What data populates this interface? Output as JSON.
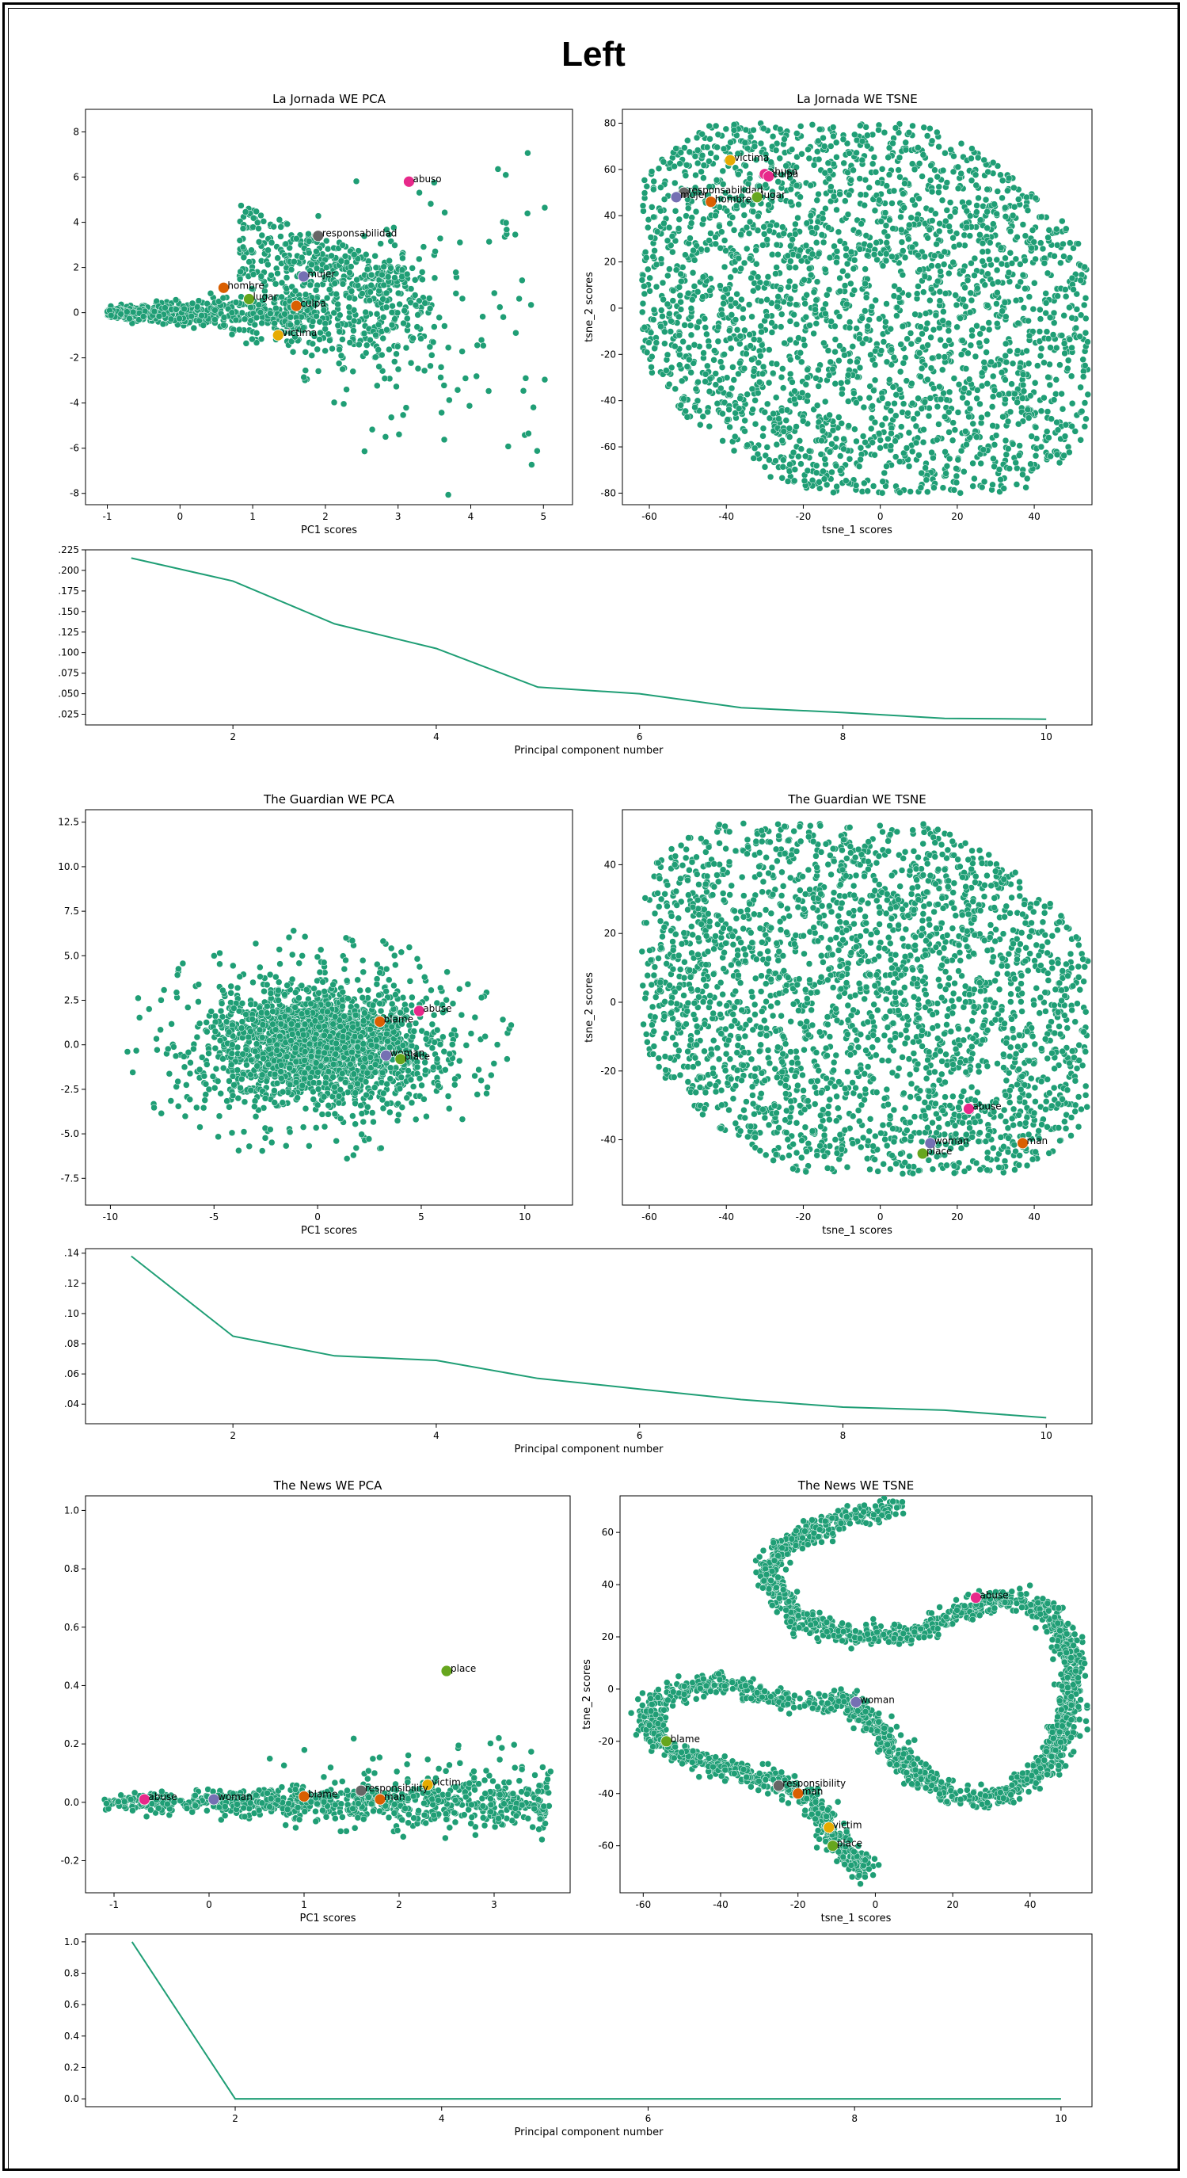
{
  "page_title": "Left",
  "colors": {
    "point": "#1f9e75",
    "point_edge": "#ffffff",
    "line": "#1f9e75",
    "highlight": [
      "#e7298a",
      "#666666",
      "#7570b3",
      "#d95f02",
      "#66a61e",
      "#e6ab02",
      "#1b9e77"
    ]
  },
  "chart_data": [
    {
      "id": "lj-pca",
      "type": "scatter",
      "title": "La Jornada WE PCA",
      "xlabel": "PC1 scores",
      "ylabel": "",
      "xlim": [
        -1.3,
        5.4
      ],
      "ylim": [
        -8.5,
        9.0
      ],
      "xticks": [
        -1,
        0,
        1,
        2,
        3,
        4,
        5
      ],
      "yticks": [
        -8,
        -6,
        -4,
        -2,
        0,
        2,
        4,
        6,
        8
      ],
      "cloud": {
        "shape": "wedge",
        "origin": [
          -1.0,
          0.0
        ],
        "x_range": [
          -1.0,
          3.5
        ],
        "spread": 1.2,
        "sparse_x": [
          1.5,
          5.1
        ],
        "sparse_y": [
          -7.6,
          8.4
        ]
      },
      "highlights": [
        {
          "label": "abuso",
          "x": 3.15,
          "y": 5.8,
          "color": "#e7298a"
        },
        {
          "label": "responsabilidad",
          "x": 1.9,
          "y": 3.4,
          "color": "#666666"
        },
        {
          "label": "mujer",
          "x": 1.7,
          "y": 1.6,
          "color": "#7570b3"
        },
        {
          "label": "hombre",
          "x": 0.6,
          "y": 1.1,
          "color": "#d95f02"
        },
        {
          "label": "lugar",
          "x": 0.95,
          "y": 0.6,
          "color": "#66a61e"
        },
        {
          "label": "culpa",
          "x": 1.6,
          "y": 0.3,
          "color": "#d95f02"
        },
        {
          "label": "victima",
          "x": 1.35,
          "y": -1.0,
          "color": "#e6ab02"
        }
      ]
    },
    {
      "id": "lj-tsne",
      "type": "scatter",
      "title": "La Jornada WE TSNE",
      "xlabel": "tsne_1 scores",
      "ylabel": "tsne_2 scores",
      "xlim": [
        -67,
        55
      ],
      "ylim": [
        -85,
        86
      ],
      "xticks": [
        -60,
        -40,
        -20,
        0,
        20,
        40
      ],
      "yticks": [
        -80,
        -60,
        -40,
        -20,
        0,
        20,
        40,
        60,
        80
      ],
      "cloud": {
        "shape": "blob",
        "x_range": [
          -62,
          54
        ],
        "y_range": [
          -80,
          80
        ]
      },
      "highlights": [
        {
          "label": "victima",
          "x": -39,
          "y": 64,
          "color": "#e6ab02"
        },
        {
          "label": "abuso",
          "x": -30,
          "y": 58,
          "color": "#e7298a"
        },
        {
          "label": "responsabilidad",
          "x": -51,
          "y": 50,
          "color": "#666666"
        },
        {
          "label": "mujer",
          "x": -53,
          "y": 48,
          "color": "#7570b3"
        },
        {
          "label": "hombre",
          "x": -44,
          "y": 46,
          "color": "#d95f02"
        },
        {
          "label": "lugar",
          "x": -32,
          "y": 48,
          "color": "#66a61e"
        },
        {
          "label": "culpa",
          "x": -29,
          "y": 57,
          "color": "#e7298a"
        }
      ]
    },
    {
      "id": "lj-scree",
      "type": "line",
      "title": "",
      "xlabel": "Principal component number",
      "ylabel": "",
      "x": [
        1,
        2,
        3,
        4,
        5,
        6,
        7,
        8,
        9,
        10
      ],
      "y": [
        0.215,
        0.187,
        0.135,
        0.105,
        0.058,
        0.05,
        0.033,
        0.027,
        0.02,
        0.019
      ],
      "xlim": [
        0.55,
        10.45
      ],
      "ylim": [
        0.012,
        0.225
      ],
      "xticks": [
        2,
        4,
        6,
        8,
        10
      ],
      "yticks": [
        0.025,
        0.05,
        0.075,
        0.1,
        0.125,
        0.15,
        0.175,
        0.2,
        0.225
      ],
      "ytick_labels": [
        ".025",
        ".050",
        ".075",
        ".100",
        ".125",
        ".150",
        ".175",
        ".200",
        ".225"
      ]
    },
    {
      "id": "gu-pca",
      "type": "scatter",
      "title": "The Guardian WE PCA",
      "xlabel": "PC1 scores",
      "ylabel": "",
      "xlim": [
        -11.2,
        12.3
      ],
      "ylim": [
        -9.0,
        13.2
      ],
      "xticks": [
        -10,
        -5,
        0,
        5,
        10
      ],
      "yticks": [
        -7.5,
        -5.0,
        -2.5,
        0.0,
        2.5,
        5.0,
        7.5,
        10.0,
        12.5
      ],
      "ytick_labels": [
        "-7.5",
        "-5.0",
        "-2.5",
        "0.0",
        "2.5",
        "5.0",
        "7.5",
        "10.0",
        "12.5"
      ],
      "cloud": {
        "shape": "disc",
        "center": [
          0,
          0
        ],
        "rx": 4.5,
        "ry": 2.6,
        "sparse_rx": 9.5,
        "sparse_ry": 6.5
      },
      "highlights": [
        {
          "label": "abuse",
          "x": 4.9,
          "y": 1.9,
          "color": "#e7298a"
        },
        {
          "label": "blame",
          "x": 3.0,
          "y": 1.3,
          "color": "#d95f02"
        },
        {
          "label": "woman",
          "x": 3.3,
          "y": -0.6,
          "color": "#7570b3"
        },
        {
          "label": "place",
          "x": 4.0,
          "y": -0.8,
          "color": "#66a61e"
        }
      ]
    },
    {
      "id": "gu-tsne",
      "type": "scatter",
      "title": "The Guardian WE TSNE",
      "xlabel": "tsne_1 scores",
      "ylabel": "tsne_2 scores",
      "xlim": [
        -67,
        55
      ],
      "ylim": [
        -59,
        56
      ],
      "xticks": [
        -60,
        -40,
        -20,
        0,
        20,
        40
      ],
      "yticks": [
        -40,
        -20,
        0,
        20,
        40
      ],
      "cloud": {
        "shape": "blob",
        "x_range": [
          -62,
          54
        ],
        "y_range": [
          -50,
          52
        ]
      },
      "highlights": [
        {
          "label": "abuse",
          "x": 23,
          "y": -31,
          "color": "#e7298a"
        },
        {
          "label": "woman",
          "x": 13,
          "y": -41,
          "color": "#7570b3"
        },
        {
          "label": "place",
          "x": 11,
          "y": -44,
          "color": "#66a61e"
        },
        {
          "label": "man",
          "x": 37,
          "y": -41,
          "color": "#d95f02"
        }
      ]
    },
    {
      "id": "gu-scree",
      "type": "line",
      "title": "",
      "xlabel": "Principal component number",
      "ylabel": "",
      "x": [
        1,
        2,
        3,
        4,
        5,
        6,
        7,
        8,
        9,
        10
      ],
      "y": [
        0.138,
        0.085,
        0.072,
        0.069,
        0.057,
        0.05,
        0.043,
        0.038,
        0.036,
        0.031
      ],
      "xlim": [
        0.55,
        10.45
      ],
      "ylim": [
        0.027,
        0.143
      ],
      "xticks": [
        2,
        4,
        6,
        8,
        10
      ],
      "yticks": [
        0.04,
        0.06,
        0.08,
        0.1,
        0.12,
        0.14
      ],
      "ytick_labels": [
        ".04",
        ".06",
        ".08",
        ".10",
        ".12",
        ".14"
      ]
    },
    {
      "id": "nw-pca",
      "type": "scatter",
      "title": "The News WE PCA",
      "xlabel": "PC1 scores",
      "ylabel": "",
      "xlim": [
        -1.3,
        3.8
      ],
      "ylim": [
        -0.31,
        1.05
      ],
      "xticks": [
        -1,
        0,
        1,
        2,
        3
      ],
      "yticks": [
        -0.2,
        0.0,
        0.2,
        0.4,
        0.6,
        0.8,
        1.0
      ],
      "ytick_labels": [
        "-0.2",
        "0.0",
        "0.2",
        "0.4",
        "0.6",
        "0.8",
        "1.0"
      ],
      "cloud": {
        "shape": "band",
        "x_range": [
          -1.1,
          3.6
        ],
        "band": 0.03,
        "sparse_x": [
          0.5,
          3.6
        ],
        "sparse_y": [
          -0.25,
          0.99
        ]
      },
      "highlights": [
        {
          "label": "place",
          "x": 2.5,
          "y": 0.45,
          "color": "#66a61e"
        },
        {
          "label": "victim",
          "x": 2.3,
          "y": 0.06,
          "color": "#e6ab02"
        },
        {
          "label": "responsibility",
          "x": 1.6,
          "y": 0.04,
          "color": "#666666"
        },
        {
          "label": "man",
          "x": 1.8,
          "y": 0.01,
          "color": "#d95f02"
        },
        {
          "label": "blame",
          "x": 1.0,
          "y": 0.02,
          "color": "#d95f02"
        },
        {
          "label": "abuse",
          "x": -0.68,
          "y": 0.01,
          "color": "#e7298a"
        },
        {
          "label": "woman",
          "x": 0.05,
          "y": 0.01,
          "color": "#7570b3"
        }
      ]
    },
    {
      "id": "nw-tsne",
      "type": "scatter",
      "title": "The News WE TSNE",
      "xlabel": "tsne_1 scores",
      "ylabel": "tsne_2 scores",
      "xlim": [
        -66,
        56
      ],
      "ylim": [
        -78,
        74
      ],
      "xticks": [
        -60,
        -40,
        -20,
        0,
        20,
        40
      ],
      "yticks": [
        -60,
        -40,
        -20,
        0,
        20,
        40,
        60
      ],
      "cloud": {
        "shape": "curve",
        "path": [
          [
            5,
            70
          ],
          [
            -10,
            64
          ],
          [
            -25,
            55
          ],
          [
            -28,
            42
          ],
          [
            -20,
            27
          ],
          [
            -5,
            20
          ],
          [
            10,
            21
          ],
          [
            22,
            30
          ],
          [
            33,
            35
          ],
          [
            45,
            30
          ],
          [
            51,
            12
          ],
          [
            50,
            -10
          ],
          [
            45,
            -28
          ],
          [
            35,
            -40
          ],
          [
            22,
            -42
          ],
          [
            10,
            -33
          ],
          [
            2,
            -18
          ],
          [
            -5,
            -5
          ],
          [
            -22,
            -5
          ],
          [
            -42,
            3
          ],
          [
            -58,
            -5
          ],
          [
            -58,
            -18
          ],
          [
            -50,
            -26
          ],
          [
            -36,
            -31
          ],
          [
            -25,
            -36
          ],
          [
            -17,
            -42
          ],
          [
            -12,
            -52
          ],
          [
            -10,
            -60
          ],
          [
            -2,
            -70
          ]
        ]
      },
      "highlights": [
        {
          "label": "abuse",
          "x": 26,
          "y": 35,
          "color": "#e7298a"
        },
        {
          "label": "woman",
          "x": -5,
          "y": -5,
          "color": "#7570b3"
        },
        {
          "label": "blame",
          "x": -54,
          "y": -20,
          "color": "#66a61e"
        },
        {
          "label": "responsibility",
          "x": -25,
          "y": -37,
          "color": "#666666"
        },
        {
          "label": "man",
          "x": -20,
          "y": -40,
          "color": "#d95f02"
        },
        {
          "label": "victim",
          "x": -12,
          "y": -53,
          "color": "#e6ab02"
        },
        {
          "label": "place",
          "x": -11,
          "y": -60,
          "color": "#66a61e"
        }
      ]
    },
    {
      "id": "nw-scree",
      "type": "line",
      "title": "",
      "xlabel": "Principal component number",
      "ylabel": "",
      "x": [
        1,
        2,
        3,
        4,
        5,
        6,
        7,
        8,
        9,
        10
      ],
      "y": [
        1.0,
        0.0,
        0.0,
        0.0,
        0.0,
        0.0,
        0.0,
        0.0,
        0.0,
        0.0
      ],
      "xlim": [
        0.55,
        10.3
      ],
      "ylim": [
        -0.05,
        1.05
      ],
      "xticks": [
        2,
        4,
        6,
        8,
        10
      ],
      "yticks": [
        0.0,
        0.2,
        0.4,
        0.6,
        0.8,
        1.0
      ],
      "ytick_labels": [
        "0.0",
        "0.2",
        "0.4",
        "0.6",
        "0.8",
        "1.0"
      ]
    }
  ]
}
